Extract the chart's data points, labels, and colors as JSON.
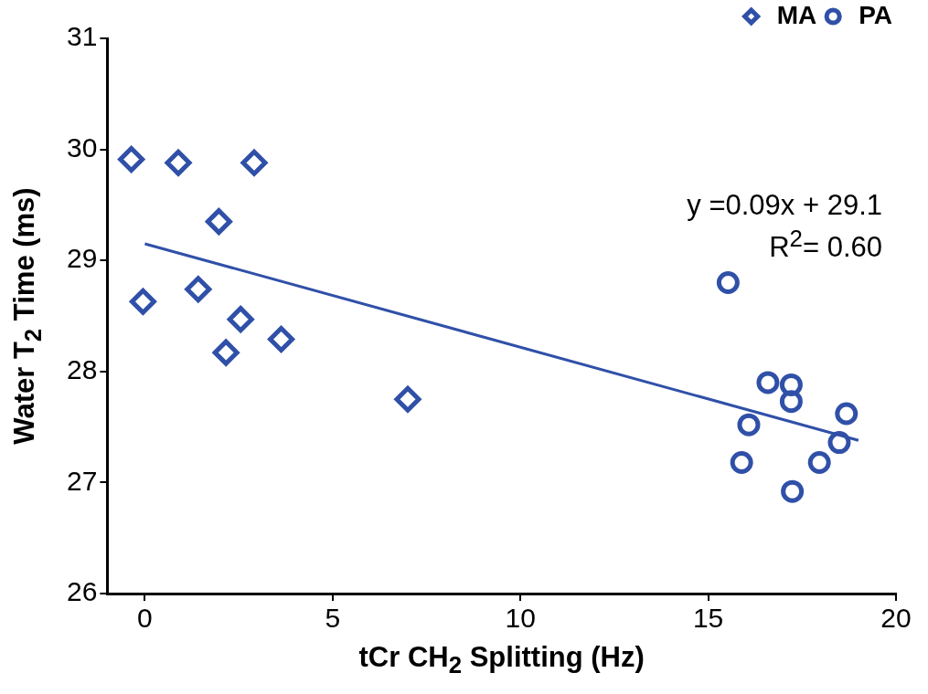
{
  "chart_data": {
    "type": "scatter",
    "xlabel": "tCr CH$_{2}$ Splitting (Hz)",
    "ylabel": "Water T$_{2}$ Time (ms)",
    "xlim": [
      -1,
      20
    ],
    "xticks": [
      0,
      5,
      10,
      15,
      20
    ],
    "ylim": [
      26,
      31
    ],
    "yticks": [
      26,
      27,
      28,
      29,
      30,
      31
    ],
    "grid": false,
    "legend": "top right",
    "annotations": [
      "y =0.09x + 29.1",
      "R$^{2}$= 0.60"
    ],
    "series": [
      {
        "name": "MA",
        "color": "#3050a8",
        "marker": "diamond",
        "x": [
          -0.36,
          0.89,
          2.91,
          1.97,
          -0.05,
          1.42,
          2.55,
          2.16,
          3.63,
          7.0
        ],
        "values": [
          29.91,
          29.88,
          29.88,
          29.35,
          28.63,
          28.74,
          28.47,
          28.17,
          28.29,
          27.75
        ]
      },
      {
        "name": "PA",
        "color": "#3050a8",
        "marker": "circle",
        "x": [
          15.53,
          16.59,
          17.21,
          17.21,
          16.08,
          18.68,
          15.89,
          17.96,
          18.49,
          17.24
        ],
        "values": [
          28.8,
          27.9,
          27.88,
          27.73,
          27.52,
          27.62,
          27.18,
          27.18,
          27.36,
          26.92
        ]
      },
      {
        "type": "line",
        "color": "#3050a8",
        "marker": "none",
        "x": [
          0,
          19
        ],
        "values": [
          29.15,
          27.38
        ]
      }
    ]
  }
}
